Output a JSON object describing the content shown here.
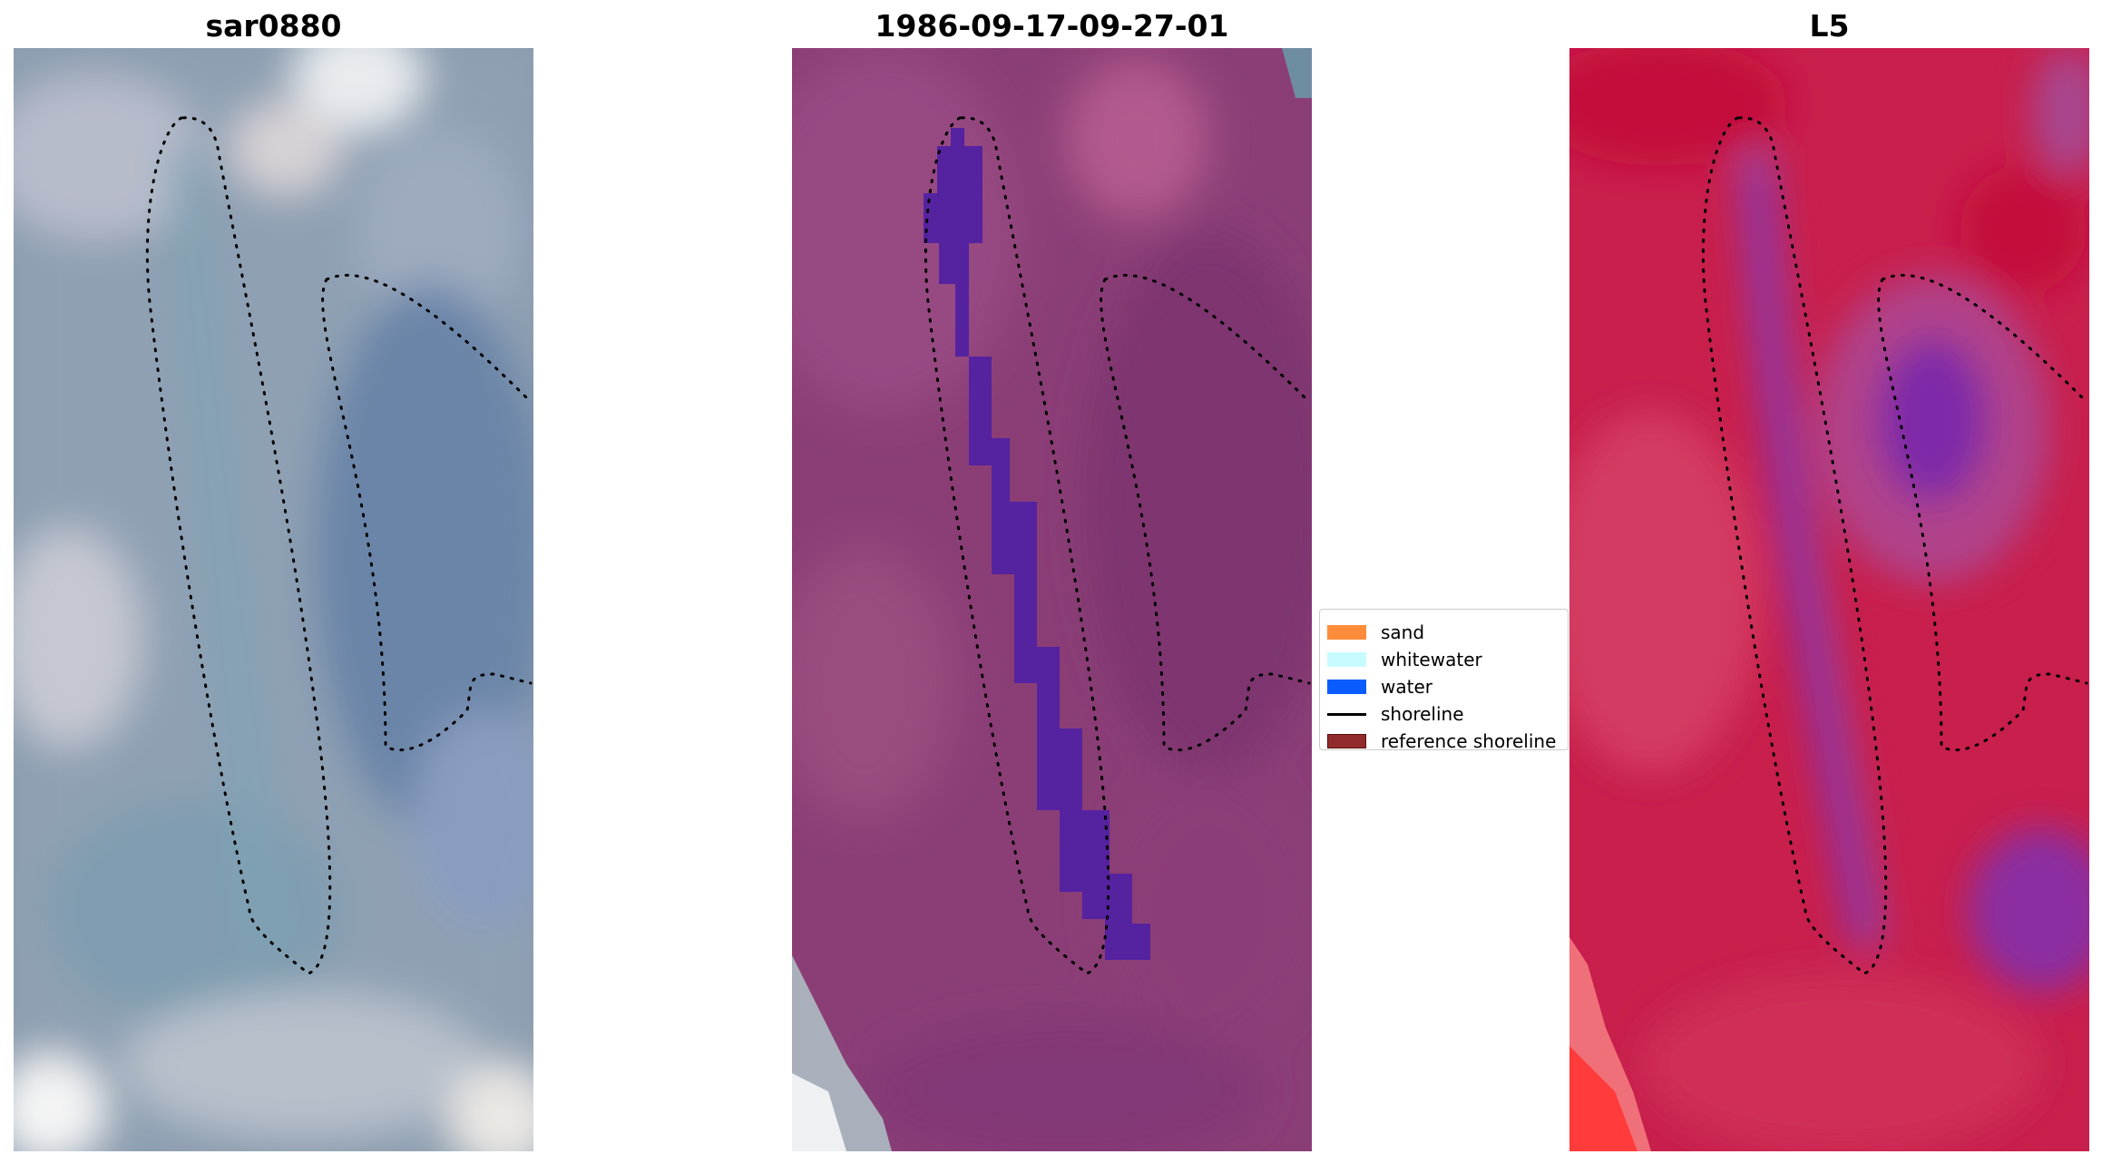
{
  "panels": [
    {
      "title": "sar0880",
      "base_color": "#7f95a8"
    },
    {
      "title": "1986-09-17-09-27-01",
      "base_color": "#8e3f78"
    },
    {
      "title": "L5",
      "base_color": "#c01f49"
    }
  ],
  "legend": {
    "items": [
      {
        "label": "sand",
        "color": "#ff8c3a"
      },
      {
        "label": "whitewater",
        "color": "#c8fbff"
      },
      {
        "label": "water",
        "color": "#0a5cff"
      },
      {
        "label": "shoreline",
        "color": "#000000"
      },
      {
        "label": "reference shoreline",
        "color": "#922b2b"
      }
    ]
  }
}
